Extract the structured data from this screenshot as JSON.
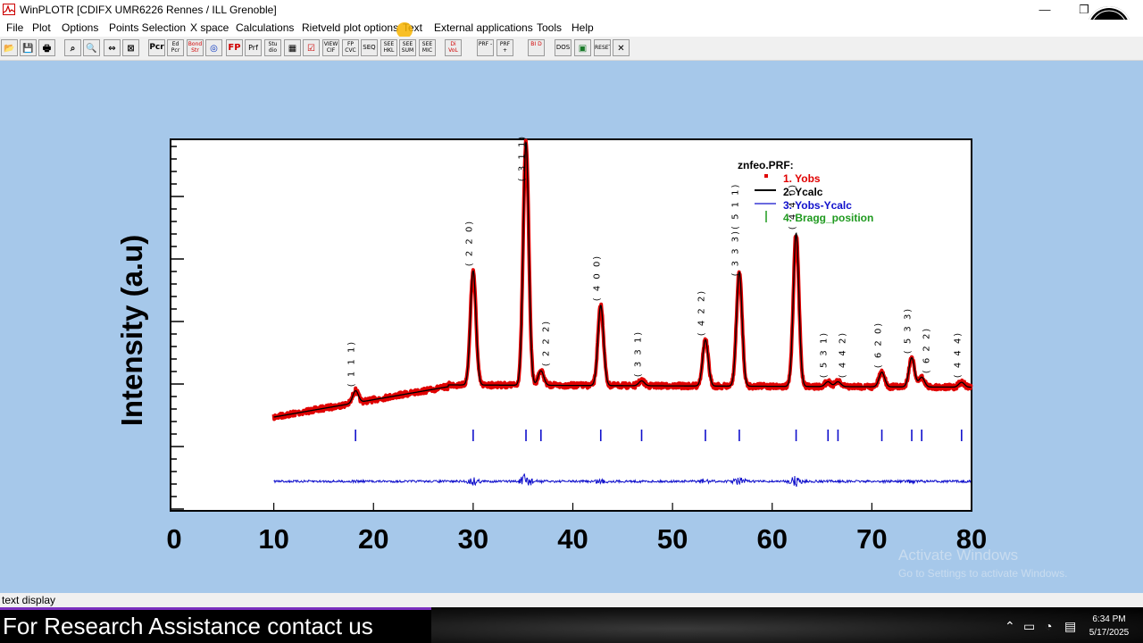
{
  "window": {
    "title": "WinPLOTR [CDIFX UMR6226 Rennes / ILL Grenoble]",
    "controls": [
      "—",
      "❐",
      "✕"
    ]
  },
  "menu": [
    "File",
    "Plot",
    "Options",
    "Points Selection",
    "X space",
    "Calculations",
    "Rietveld plot options",
    "Text",
    "External applications",
    "Tools",
    "Help"
  ],
  "toolbar": [
    "open",
    "save",
    "print",
    "zoom-page",
    "zoom-in",
    "pan-x",
    "fit-window",
    "Pcr",
    "Ed Pcr",
    "Bond Str",
    "globe",
    "FP",
    "Prf",
    "Stu dio",
    "table",
    "check",
    "VIEW CIF",
    "FP CVC",
    "SEQ",
    "SEE HKL",
    "SEE SUM",
    "SEE MIC",
    "Di VoL",
    "PRF -",
    "PRF +",
    "BI D",
    "DOS",
    "picture",
    "RESET",
    "close"
  ],
  "chart_data": {
    "type": "line",
    "ylabel": "Intensity (a.u)",
    "x_ticks": [
      "0",
      "10",
      "20",
      "30",
      "40",
      "50",
      "60",
      "70",
      "80"
    ],
    "xlim": [
      0,
      80
    ],
    "legend": {
      "title": "znfeo.PRF:",
      "entries": [
        {
          "label": "1. Yobs",
          "color": "#e00000",
          "marker": "dot"
        },
        {
          "label": "2. Ycalc",
          "color": "#000000",
          "marker": "line"
        },
        {
          "label": "3. Yobs-Ycalc",
          "color": "#1010cc",
          "marker": "line"
        },
        {
          "label": "4. Bragg_position",
          "color": "#1f9a1f",
          "marker": "tick"
        }
      ],
      "position": "top-right"
    },
    "peaks": [
      {
        "x": 18.2,
        "height": 0.05,
        "label": "( 1 1 1)"
      },
      {
        "x": 30.0,
        "height": 0.47,
        "label": "( 2 2 0)"
      },
      {
        "x": 35.3,
        "height": 1.0,
        "label": "( 3 1 1)"
      },
      {
        "x": 36.8,
        "height": 0.06,
        "label": "( 2 2 2)"
      },
      {
        "x": 42.8,
        "height": 0.33,
        "label": "( 4 0 0)"
      },
      {
        "x": 46.9,
        "height": 0.02,
        "label": "( 3 3 1)"
      },
      {
        "x": 53.3,
        "height": 0.19,
        "label": "( 4 2 2)"
      },
      {
        "x": 56.7,
        "height": 0.47,
        "label": "( 3 3 3)( 5 1 1)"
      },
      {
        "x": 62.4,
        "height": 0.63,
        "label": "( 4 4 0)"
      },
      {
        "x": 65.6,
        "height": 0.02,
        "label": "( 5 3 1)"
      },
      {
        "x": 66.6,
        "height": 0.02,
        "label": "( 4 4 2)"
      },
      {
        "x": 71.0,
        "height": 0.06,
        "label": "( 6 2 0)"
      },
      {
        "x": 74.0,
        "height": 0.12,
        "label": "( 5 3 3)"
      },
      {
        "x": 75.0,
        "height": 0.04,
        "label": "( 6 2 2)"
      },
      {
        "x": 79.0,
        "height": 0.02,
        "label": "( 4 4 4)"
      }
    ],
    "bragg_positions": [
      18.2,
      30.0,
      35.3,
      36.8,
      42.8,
      46.9,
      53.3,
      56.7,
      62.4,
      65.6,
      66.6,
      71.0,
      74.0,
      75.0,
      79.0
    ]
  },
  "watermark": {
    "line1": "Activate Windows",
    "line2": "Go to Settings to activate Windows."
  },
  "status": "text display",
  "banner": "For Research Assistance contact us",
  "clock": {
    "time": "6:34 PM",
    "date": "5/17/2025"
  }
}
